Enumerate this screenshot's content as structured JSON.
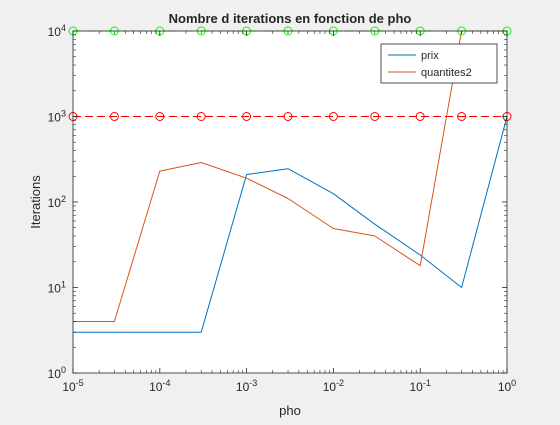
{
  "chart_data": {
    "type": "line",
    "title": "Nombre d iterations en fonction de pho",
    "xlabel": "pho",
    "ylabel": "Iterations",
    "x_scale": "log",
    "y_scale": "log",
    "xlim": [
      1e-05,
      1
    ],
    "ylim": [
      1,
      10000
    ],
    "grid": false,
    "legend_position": "top-right",
    "x_tick_labels": [
      {
        "base": "10",
        "exp": "-5",
        "value": 1e-05
      },
      {
        "base": "10",
        "exp": "-4",
        "value": 0.0001
      },
      {
        "base": "10",
        "exp": "-3",
        "value": 0.001
      },
      {
        "base": "10",
        "exp": "-2",
        "value": 0.01
      },
      {
        "base": "10",
        "exp": "-1",
        "value": 0.1
      },
      {
        "base": "10",
        "exp": "0",
        "value": 1
      }
    ],
    "y_tick_labels": [
      {
        "base": "10",
        "exp": "0",
        "value": 1
      },
      {
        "base": "10",
        "exp": "1",
        "value": 10
      },
      {
        "base": "10",
        "exp": "2",
        "value": 100
      },
      {
        "base": "10",
        "exp": "3",
        "value": 1000
      },
      {
        "base": "10",
        "exp": "4",
        "value": 10000
      }
    ],
    "x": [
      1e-05,
      3e-05,
      0.0001,
      0.0003,
      0.001,
      0.003,
      0.01,
      0.03,
      0.1,
      0.3,
      1
    ],
    "series": [
      {
        "name": "prix",
        "color": "#0072bd",
        "values": [
          3,
          3,
          3,
          3,
          210,
          245,
          125,
          55,
          24,
          10,
          1000
        ]
      },
      {
        "name": "quantites2",
        "color": "#d95319",
        "values": [
          4,
          4,
          230,
          290,
          190,
          110,
          49,
          40,
          18,
          10000,
          10000
        ]
      }
    ],
    "reference_lines": [
      {
        "value": 10000,
        "color": "#00ff00",
        "style": "dash-dot",
        "marker": "circle"
      },
      {
        "value": 1000,
        "color": "#ff0000",
        "style": "dashed",
        "marker": "circle"
      }
    ]
  }
}
